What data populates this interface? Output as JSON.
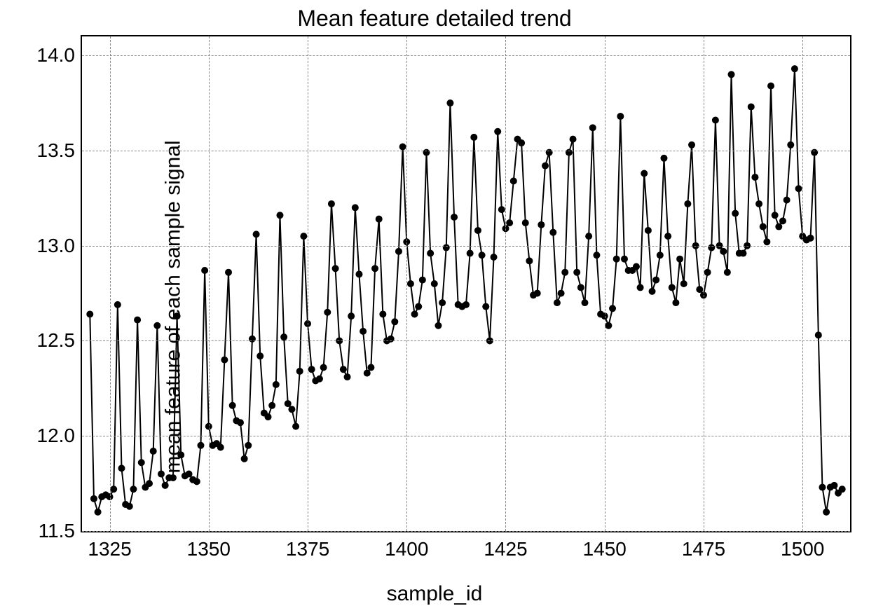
{
  "chart": {
    "type": "line",
    "title": "Mean feature detailed trend",
    "title_fontsize": 32,
    "xlabel": "sample_id",
    "ylabel": "mean feature of each sample signal",
    "label_fontsize": 30,
    "tick_fontsize": 28,
    "xlim": [
      1318,
      1512
    ],
    "ylim": [
      11.5,
      14.1
    ],
    "xticks": [
      1325,
      1350,
      1375,
      1400,
      1425,
      1450,
      1475,
      1500
    ],
    "yticks": [
      11.5,
      12.0,
      12.5,
      13.0,
      13.5,
      14.0
    ],
    "xtick_labels": [
      "1325",
      "1350",
      "1375",
      "1400",
      "1425",
      "1450",
      "1475",
      "1500"
    ],
    "ytick_labels": [
      "11.5",
      "12.0",
      "12.5",
      "13.0",
      "13.5",
      "14.0"
    ],
    "background_color": "#ffffff",
    "grid_color": "#888888",
    "grid_style": "dashed",
    "border_color": "#000000",
    "line_color": "#000000",
    "line_width": 2,
    "marker_color": "#000000",
    "marker_size": 5,
    "marker_style": "circle",
    "x": [
      1320,
      1321,
      1322,
      1323,
      1324,
      1325,
      1326,
      1327,
      1328,
      1329,
      1330,
      1331,
      1332,
      1333,
      1334,
      1335,
      1336,
      1337,
      1338,
      1339,
      1340,
      1341,
      1342,
      1343,
      1344,
      1345,
      1346,
      1347,
      1348,
      1349,
      1350,
      1351,
      1352,
      1353,
      1354,
      1355,
      1356,
      1357,
      1358,
      1359,
      1360,
      1361,
      1362,
      1363,
      1364,
      1365,
      1366,
      1367,
      1368,
      1369,
      1370,
      1371,
      1372,
      1373,
      1374,
      1375,
      1376,
      1377,
      1378,
      1379,
      1380,
      1381,
      1382,
      1383,
      1384,
      1385,
      1386,
      1387,
      1388,
      1389,
      1390,
      1391,
      1392,
      1393,
      1394,
      1395,
      1396,
      1397,
      1398,
      1399,
      1400,
      1401,
      1402,
      1403,
      1404,
      1405,
      1406,
      1407,
      1408,
      1409,
      1410,
      1411,
      1412,
      1413,
      1414,
      1415,
      1416,
      1417,
      1418,
      1419,
      1420,
      1421,
      1422,
      1423,
      1424,
      1425,
      1426,
      1427,
      1428,
      1429,
      1430,
      1431,
      1432,
      1433,
      1434,
      1435,
      1436,
      1437,
      1438,
      1439,
      1440,
      1441,
      1442,
      1443,
      1444,
      1445,
      1446,
      1447,
      1448,
      1449,
      1450,
      1451,
      1452,
      1453,
      1454,
      1455,
      1456,
      1457,
      1458,
      1459,
      1460,
      1461,
      1462,
      1463,
      1464,
      1465,
      1466,
      1467,
      1468,
      1469,
      1470,
      1471,
      1472,
      1473,
      1474,
      1475,
      1476,
      1477,
      1478,
      1479,
      1480,
      1481,
      1482,
      1483,
      1484,
      1485,
      1486,
      1487,
      1488,
      1489,
      1490,
      1491,
      1492,
      1493,
      1494,
      1495,
      1496,
      1497,
      1498,
      1499,
      1500,
      1501,
      1502,
      1503,
      1504,
      1505,
      1506,
      1507,
      1508,
      1509,
      1510
    ],
    "y": [
      12.64,
      11.67,
      11.6,
      11.68,
      11.69,
      11.68,
      11.72,
      12.69,
      11.83,
      11.64,
      11.63,
      11.72,
      12.61,
      11.86,
      11.73,
      11.75,
      11.92,
      12.58,
      11.8,
      11.74,
      11.78,
      11.78,
      12.63,
      11.9,
      11.79,
      11.8,
      11.77,
      11.76,
      11.95,
      12.87,
      12.05,
      11.95,
      11.96,
      11.94,
      12.4,
      12.86,
      12.16,
      12.08,
      12.07,
      11.88,
      11.95,
      12.51,
      13.06,
      12.42,
      12.12,
      12.1,
      12.16,
      12.27,
      13.16,
      12.52,
      12.17,
      12.14,
      12.05,
      12.34,
      13.05,
      12.59,
      12.35,
      12.29,
      12.3,
      12.36,
      12.65,
      13.22,
      12.88,
      12.5,
      12.35,
      12.31,
      12.63,
      13.2,
      12.85,
      12.55,
      12.33,
      12.36,
      12.88,
      13.14,
      12.64,
      12.5,
      12.51,
      12.6,
      12.97,
      13.52,
      13.02,
      12.8,
      12.64,
      12.68,
      12.82,
      13.49,
      12.96,
      12.8,
      12.58,
      12.7,
      12.99,
      13.75,
      13.15,
      12.69,
      12.68,
      12.69,
      12.96,
      13.57,
      13.08,
      12.95,
      12.68,
      12.5,
      12.94,
      13.6,
      13.19,
      13.09,
      13.12,
      13.34,
      13.56,
      13.54,
      13.12,
      12.92,
      12.74,
      12.75,
      13.11,
      13.42,
      13.49,
      13.07,
      12.7,
      12.75,
      12.86,
      13.49,
      13.56,
      12.86,
      12.78,
      12.7,
      13.05,
      13.62,
      12.95,
      12.64,
      12.63,
      12.58,
      12.67,
      12.93,
      13.68,
      12.93,
      12.87,
      12.87,
      12.89,
      12.78,
      13.38,
      13.08,
      12.76,
      12.82,
      12.95,
      13.46,
      13.05,
      12.78,
      12.7,
      12.93,
      12.8,
      13.22,
      13.53,
      13.0,
      12.77,
      12.74,
      12.86,
      12.99,
      13.66,
      13.0,
      12.97,
      12.86,
      13.9,
      13.17,
      12.96,
      12.96,
      13.0,
      13.73,
      13.36,
      13.22,
      13.1,
      13.02,
      13.84,
      13.16,
      13.1,
      13.13,
      13.24,
      13.53,
      13.93,
      13.3,
      13.05,
      13.03,
      13.04,
      13.49,
      12.53,
      11.73,
      11.6,
      11.73,
      11.74,
      11.7,
      11.72
    ]
  }
}
